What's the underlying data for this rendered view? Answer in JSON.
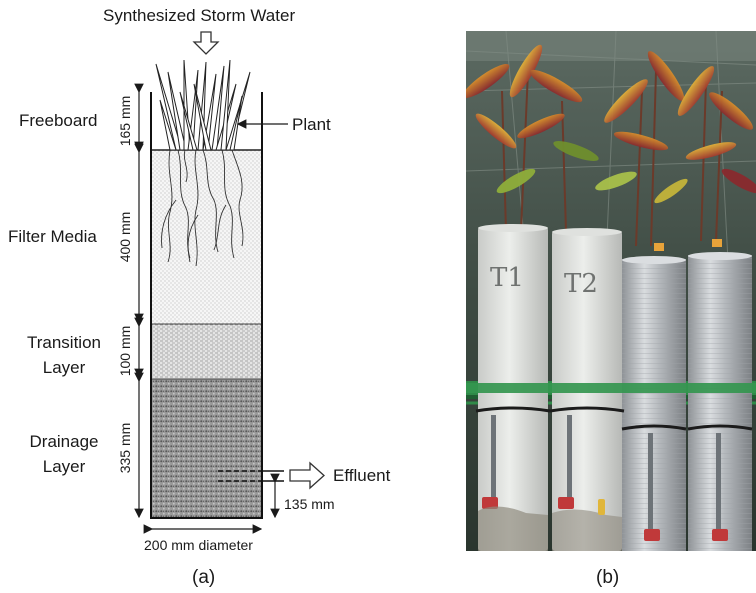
{
  "diagram": {
    "title": "Synthesized Storm Water",
    "layers": [
      {
        "label": "Freeboard",
        "thickness": "165 mm"
      },
      {
        "label": "Filter Media",
        "thickness": "400 mm"
      },
      {
        "label": "Transition Layer",
        "label_lines": [
          "Transition",
          "Layer"
        ],
        "thickness": "100 mm"
      },
      {
        "label": "Drainage Layer",
        "label_lines": [
          "Drainage",
          "Layer"
        ],
        "thickness": "335 mm"
      }
    ],
    "plant_label": "Plant",
    "effluent_label": "Effluent",
    "outlet_height": "135 mm",
    "diameter_label": "200 mm diameter",
    "caption": "(a)"
  },
  "photo": {
    "column_labels": [
      "T1",
      "T2"
    ],
    "caption": "(b)"
  }
}
